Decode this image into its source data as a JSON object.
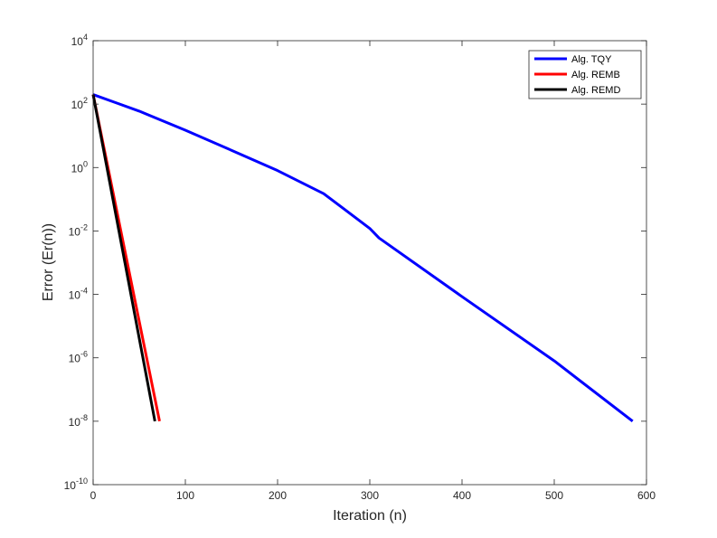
{
  "chart_data": {
    "type": "line",
    "title": "",
    "xlabel": "Iteration (n)",
    "ylabel": "Error (Er(n))",
    "xlim": [
      0,
      600
    ],
    "ylim": [
      1e-10,
      10000
    ],
    "yscale": "log",
    "x_ticks": [
      0,
      100,
      200,
      300,
      400,
      500,
      600
    ],
    "y_tick_exponents": [
      "-10",
      "-8",
      "-6",
      "-4",
      "-2",
      "0",
      "2",
      "4"
    ],
    "y_tick_base": "10",
    "grid": false,
    "legend_position": "top-right",
    "series": [
      {
        "name": "Alg. TQY",
        "color": "#0000ff",
        "x": [
          0,
          50,
          100,
          150,
          200,
          250,
          300,
          310,
          400,
          500,
          585
        ],
        "y": [
          200,
          60,
          15,
          3.5,
          0.8,
          0.15,
          0.012,
          0.006,
          8.5e-05,
          8e-07,
          1e-08
        ]
      },
      {
        "name": "Alg. REMB",
        "color": "#ff0000",
        "x": [
          0,
          72
        ],
        "y": [
          200,
          1e-08
        ]
      },
      {
        "name": "Alg. REMD",
        "color": "#000000",
        "x": [
          0,
          67
        ],
        "y": [
          200,
          1e-08
        ]
      }
    ]
  }
}
